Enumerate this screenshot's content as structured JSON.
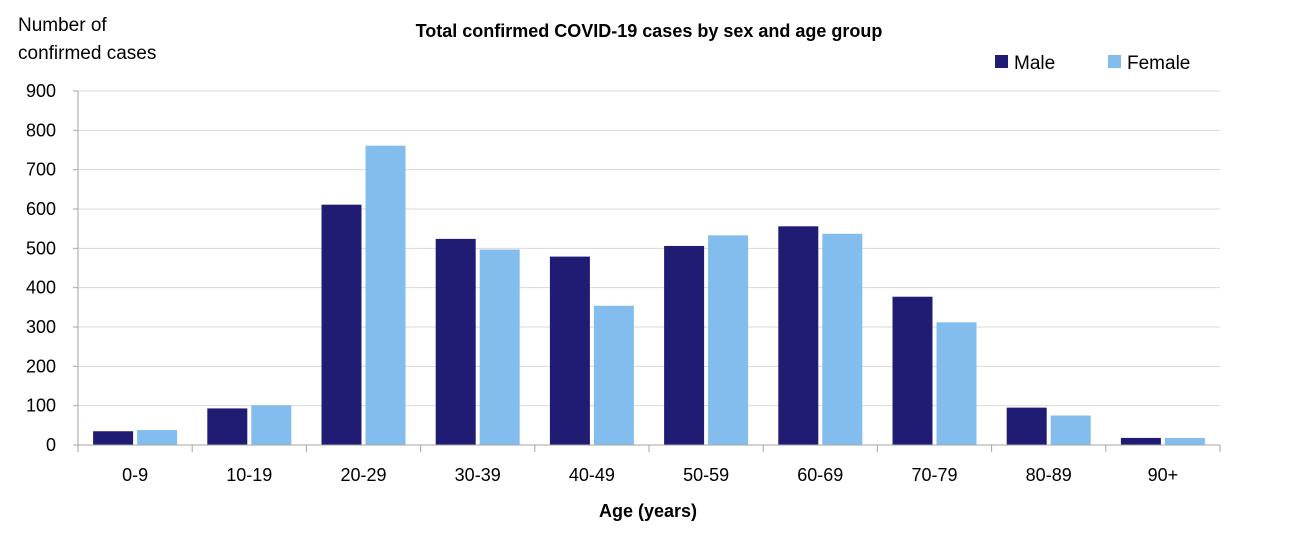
{
  "chart_data": {
    "type": "bar",
    "title": "Total confirmed COVID-19 cases by sex and age group",
    "ylabel_line1": "Number of",
    "ylabel_line2": "confirmed cases",
    "xlabel": "Age (years)",
    "categories": [
      "0-9",
      "10-19",
      "20-29",
      "30-39",
      "40-49",
      "50-59",
      "60-69",
      "70-79",
      "80-89",
      "90+"
    ],
    "series": [
      {
        "name": "Male",
        "color": "#201c74",
        "values": [
          35,
          93,
          611,
          524,
          479,
          506,
          556,
          377,
          95,
          18
        ]
      },
      {
        "name": "Female",
        "color": "#82bdee",
        "values": [
          38,
          101,
          761,
          497,
          354,
          533,
          537,
          312,
          75,
          18
        ]
      }
    ],
    "ylim": [
      0,
      900
    ],
    "yticks": [
      "0",
      "100",
      "200",
      "300",
      "400",
      "500",
      "600",
      "700",
      "800",
      "900"
    ],
    "grid": true,
    "legend_position": "top-right"
  }
}
